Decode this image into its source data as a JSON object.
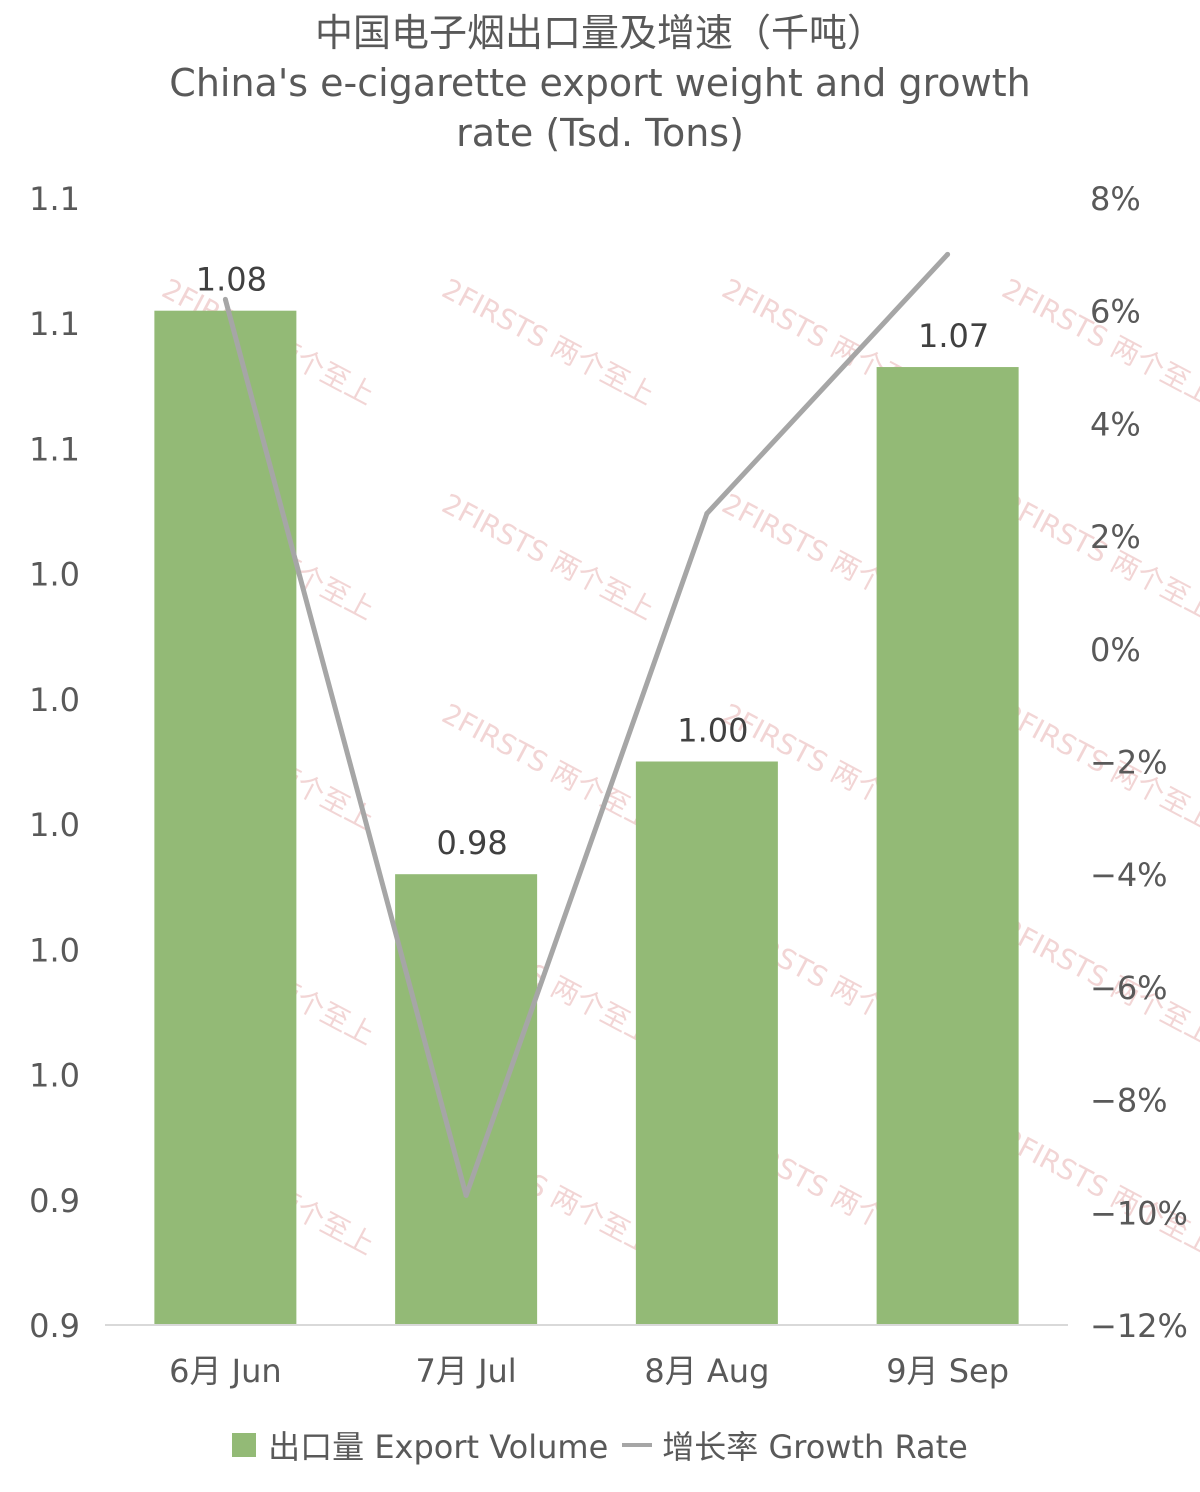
{
  "chart_data": {
    "type": "bar",
    "title": "中国电子烟出口量及增速（千吨）",
    "subtitle_lines": [
      "China's e-cigarette export weight and growth",
      "rate (Tsd. Tons)"
    ],
    "categories": [
      "6月 Jun",
      "7月 Jul",
      "8月 Aug",
      "9月 Sep"
    ],
    "series": [
      {
        "name": "出口量 Export Volume",
        "type": "bar",
        "axis": "left",
        "values": [
          1.08,
          0.98,
          1.0,
          1.07
        ],
        "data_labels": [
          "1.08",
          "0.98",
          "1.00",
          "1.07"
        ],
        "color": "#93BA76"
      },
      {
        "name": "增长率 Growth Rate",
        "type": "line",
        "axis": "right",
        "values": [
          6.2,
          -9.7,
          2.4,
          7.0
        ],
        "unit": "%",
        "color": "#A6A6A6"
      }
    ],
    "left_axis": {
      "ylim": [
        0.9,
        1.1
      ],
      "tick_labels": [
        "1.1",
        "1.1",
        "1.1",
        "1.0",
        "1.0",
        "1.0",
        "1.0",
        "1.0",
        "0.9",
        "0.9"
      ]
    },
    "right_axis": {
      "ylim": [
        -12,
        8
      ],
      "tick_labels": [
        "8%",
        "6%",
        "4%",
        "2%",
        "0%",
        "−2%",
        "−4%",
        "−6%",
        "−8%",
        "−10%",
        "−12%"
      ]
    },
    "grid": false,
    "legend_position": "bottom"
  },
  "legend": {
    "bar_label": "出口量 Export Volume",
    "line_label": "增长率 Growth Rate"
  },
  "watermark": "2FIRSTS 两个至上"
}
